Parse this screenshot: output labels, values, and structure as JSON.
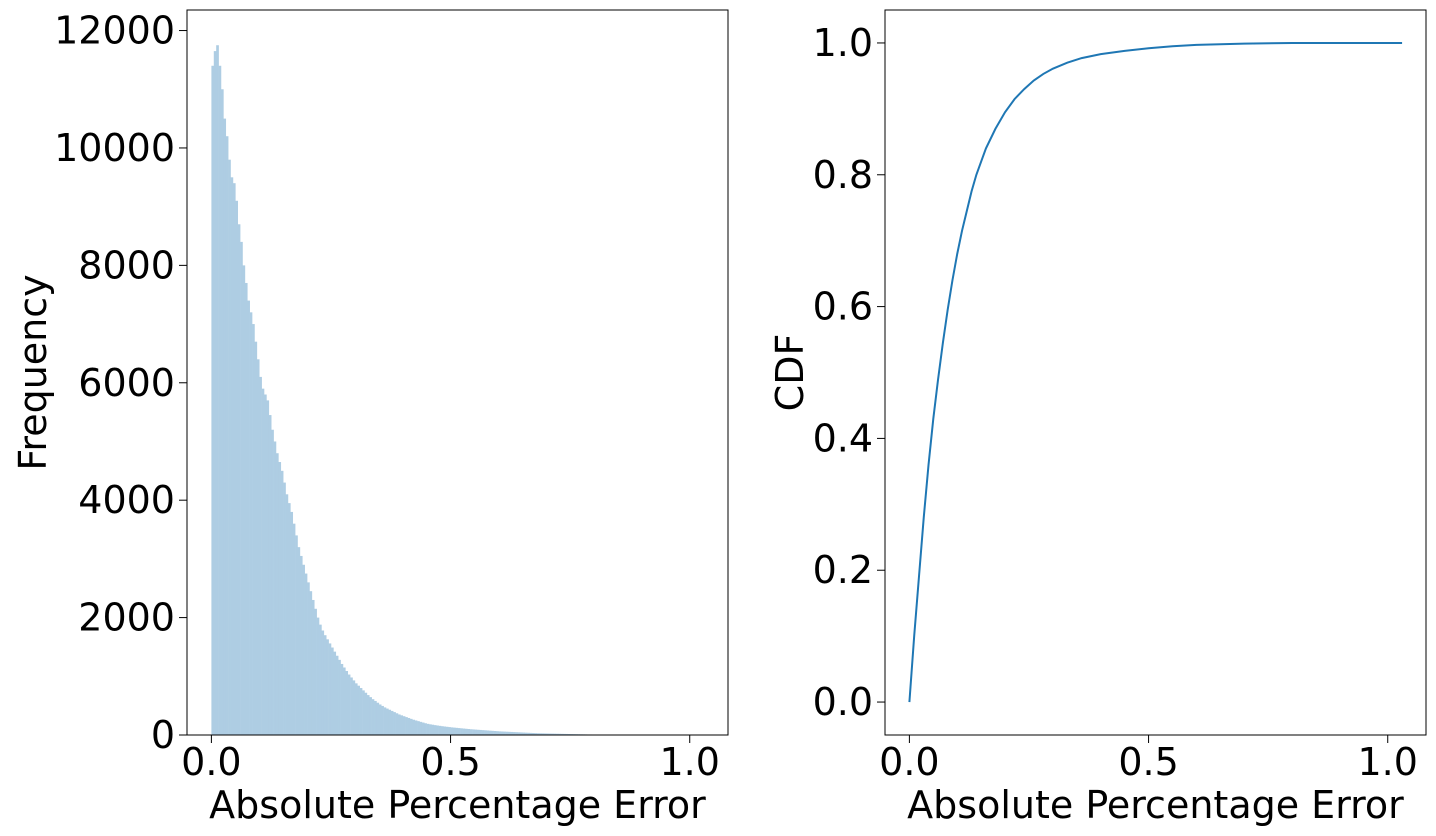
{
  "chart_data": [
    {
      "type": "histogram",
      "title": "",
      "xlabel": "Absolute Percentage Error",
      "ylabel": "Frequency",
      "xlim": [
        -0.051,
        1.08
      ],
      "ylim": [
        0,
        12350
      ],
      "xticks": [
        0.0,
        0.5,
        1.0
      ],
      "xtick_labels": [
        "0.0",
        "0.5",
        "1.0"
      ],
      "yticks": [
        0,
        2000,
        4000,
        6000,
        8000,
        10000,
        12000
      ],
      "ytick_labels": [
        "0",
        "2000",
        "4000",
        "6000",
        "8000",
        "10000",
        "12000"
      ],
      "grid": false,
      "color": "#aecde3",
      "bin_width": 0.005,
      "bin_start": 0.0,
      "values": [
        11400,
        11650,
        11750,
        11400,
        11000,
        10500,
        10200,
        9800,
        9500,
        9400,
        9100,
        8700,
        8400,
        8000,
        7700,
        7400,
        7200,
        7000,
        6700,
        6400,
        6100,
        5900,
        5800,
        5700,
        5450,
        5200,
        5000,
        4800,
        4650,
        4500,
        4300,
        4100,
        3950,
        3800,
        3600,
        3400,
        3200,
        3050,
        2900,
        2750,
        2600,
        2450,
        2300,
        2150,
        2000,
        1880,
        1780,
        1700,
        1630,
        1560,
        1490,
        1420,
        1350,
        1280,
        1210,
        1150,
        1090,
        1030,
        980,
        930,
        880,
        840,
        800,
        760,
        720,
        680,
        645,
        610,
        580,
        550,
        520,
        495,
        470,
        450,
        430,
        410,
        390,
        370,
        350,
        335,
        320,
        305,
        290,
        275,
        260,
        248,
        236,
        224,
        212,
        200,
        190,
        182,
        175,
        168,
        162,
        156,
        150,
        145,
        140,
        135,
        130,
        126,
        122,
        118,
        114,
        110,
        106,
        102,
        98,
        95,
        92,
        89,
        86,
        83,
        80,
        77,
        74,
        71,
        68,
        65,
        62,
        60,
        58,
        56,
        54,
        52,
        50,
        48,
        46,
        44,
        42,
        40,
        38,
        36,
        34,
        32,
        30,
        29,
        28,
        27,
        26,
        25,
        24,
        23,
        22,
        21,
        20,
        19,
        18,
        17,
        16,
        15,
        14,
        13,
        12,
        11,
        10,
        9,
        9,
        8,
        8,
        7,
        7,
        6,
        6,
        5,
        5,
        4,
        4,
        4,
        3,
        3,
        3,
        2,
        2,
        2,
        2,
        1,
        1,
        1,
        1,
        1,
        1,
        1,
        1,
        1,
        1,
        1,
        1,
        1,
        1,
        1,
        1,
        1,
        1,
        1,
        1,
        1,
        1,
        1,
        1,
        1,
        1,
        1,
        1,
        1,
        1,
        1,
        1,
        1,
        1,
        1
      ]
    },
    {
      "type": "line",
      "title": "",
      "xlabel": "Absolute Percentage Error",
      "ylabel": "CDF",
      "xlim": [
        -0.051,
        1.08
      ],
      "ylim": [
        -0.05,
        1.05
      ],
      "xticks": [
        0.0,
        0.5,
        1.0
      ],
      "xtick_labels": [
        "0.0",
        "0.5",
        "1.0"
      ],
      "yticks": [
        0.0,
        0.2,
        0.4,
        0.6,
        0.8,
        1.0
      ],
      "ytick_labels": [
        "0.0",
        "0.2",
        "0.4",
        "0.6",
        "0.8",
        "1.0"
      ],
      "grid": false,
      "color": "#1f77b4",
      "series": [
        {
          "x": [
            0.0,
            0.01,
            0.02,
            0.03,
            0.04,
            0.05,
            0.06,
            0.07,
            0.08,
            0.09,
            0.1,
            0.11,
            0.12,
            0.13,
            0.14,
            0.15,
            0.16,
            0.18,
            0.2,
            0.22,
            0.24,
            0.26,
            0.28,
            0.3,
            0.33,
            0.36,
            0.4,
            0.45,
            0.5,
            0.55,
            0.6,
            0.7,
            0.8,
            0.9,
            1.0,
            1.03
          ],
          "y": [
            0.0,
            0.1,
            0.19,
            0.28,
            0.36,
            0.43,
            0.49,
            0.545,
            0.595,
            0.64,
            0.68,
            0.715,
            0.745,
            0.775,
            0.8,
            0.82,
            0.84,
            0.87,
            0.895,
            0.915,
            0.93,
            0.943,
            0.953,
            0.961,
            0.97,
            0.977,
            0.983,
            0.988,
            0.992,
            0.995,
            0.997,
            0.999,
            1.0,
            1.0,
            1.0,
            1.0
          ]
        }
      ]
    }
  ]
}
